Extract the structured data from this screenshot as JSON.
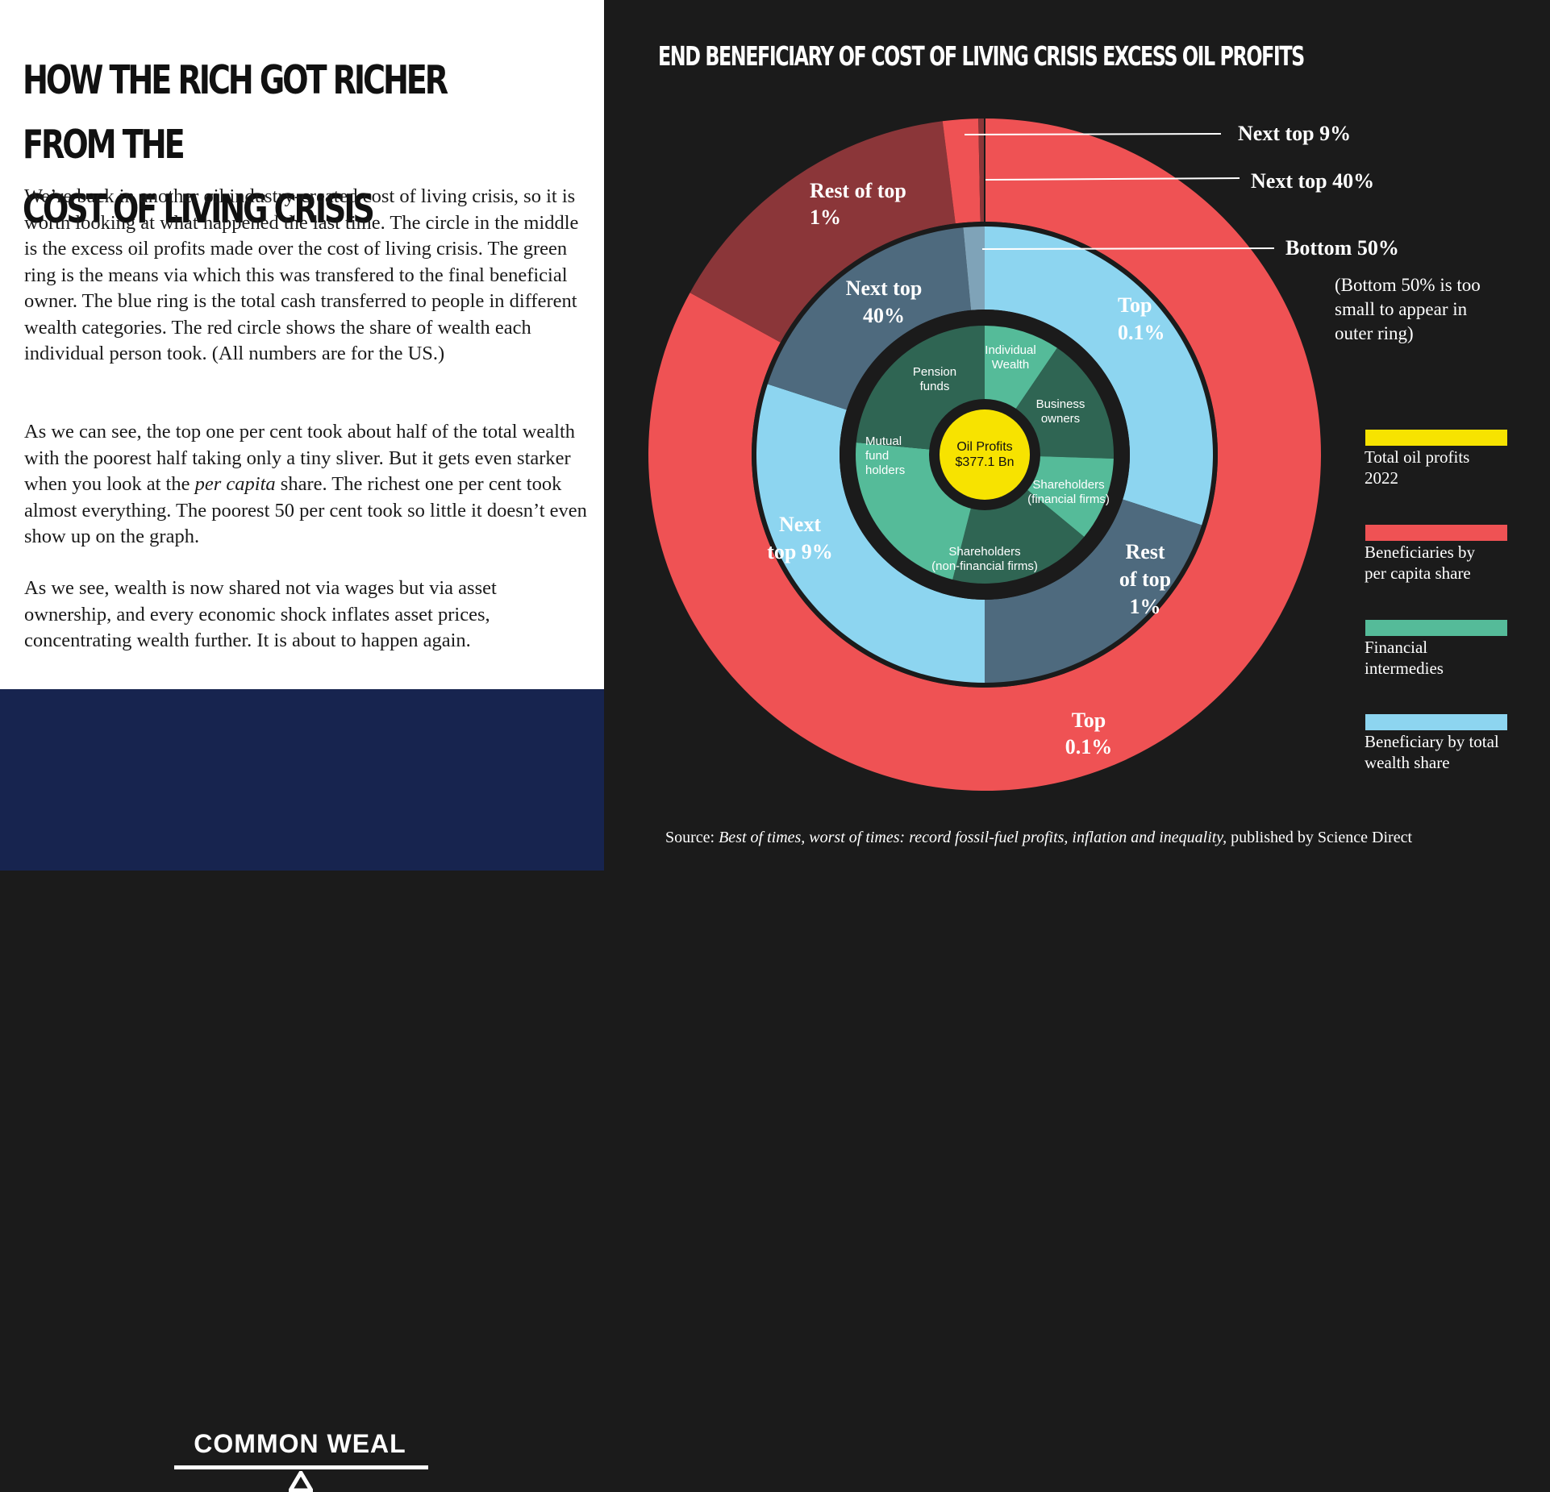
{
  "left_panel": {
    "headline": "HOW THE RICH GOT RICHER FROM THE\nCOST OF LIVING CRISIS",
    "paragraphs": [
      "We’re back in another oil industry-created cost of living crisis, so it is worth looking at what happened the last time. The circle in the middle is the excess oil profits made over the cost of living crisis. The green ring is the means via which this was transfered to the final beneficial owner. The blue ring is the total cash transferred to people in different wealth categories. The red circle shows the share of wealth each individual person took. (All numbers are for the US.)",
      "As we can see, the top one per cent took about half of the total wealth with the poorest half taking only a tiny sliver. But it gets even starker when you look at the per capita share. The richest one per cent took almost everything. The poorest 50 per cent took so little it doesn’t even show up on the graph.",
      "As we see, wealth is now shared not via wages but via asset ownership, and every economic shock inflates asset prices, concentrating wealth further. It is about to happen again."
    ]
  },
  "footer": {
    "brand": "COMMON WEAL"
  },
  "colors": {
    "yellow": "#f7e300",
    "red": "#ef5254",
    "dark_red": "#8b3639",
    "green": "#55bb99",
    "dark_green": "#2f6553",
    "light_blue": "#8dd5f0",
    "slate_blue": "#4e6a7e",
    "background": "#1b1b1b"
  },
  "chart_data": {
    "type": "nested-donut",
    "title": "END BENEFICIARY OF COST OF LIVING CRISIS EXCESS OIL PROFITS",
    "center": {
      "label": "Oil Profits",
      "value_label": "$377.1 Bn",
      "value_bn": 377.1
    },
    "green_ring": {
      "name": "Financial intermedies",
      "segments": [
        {
          "label": "Individual Wealth",
          "share": 0.095
        },
        {
          "label": "Business owners",
          "share": 0.16
        },
        {
          "label": "Shareholders (financial firms)",
          "share": 0.105
        },
        {
          "label": "Shareholders (non-financial firms)",
          "share": 0.18
        },
        {
          "label": "Mutual fund holders",
          "share": 0.225
        },
        {
          "label": "Pension funds",
          "share": 0.235
        }
      ]
    },
    "blue_ring": {
      "name": "Beneficiary by total wealth share",
      "segments": [
        {
          "label": "Top 0.1%",
          "share": 0.3
        },
        {
          "label": "Rest of top 1%",
          "share": 0.2
        },
        {
          "label": "Next top 9%",
          "share": 0.3
        },
        {
          "label": "Next top 40%",
          "share": 0.185
        },
        {
          "label": "Bottom 50%",
          "share": 0.015
        }
      ]
    },
    "red_ring": {
      "name": "Beneficiaries by per capita share",
      "segments": [
        {
          "label": "Top 0.1%",
          "share": 0.83
        },
        {
          "label": "Rest of top 1%",
          "share": 0.15
        },
        {
          "label": "Next top 9%",
          "share": 0.017
        },
        {
          "label": "Next top  40%",
          "share": 0.003
        }
      ]
    },
    "annotations": {
      "green": [
        "Individual\nWealth",
        "Business\nowners",
        "Shareholders\n(financial firms)",
        "Shareholders\n(non-financial firms)",
        "Mutual\nfund\nholders",
        "Pension\nfunds"
      ],
      "blue": [
        "Top\n0.1%",
        "Rest\nof top\n1%",
        "Next\ntop 9%",
        "Next top\n40%"
      ],
      "red": [
        "Top\n0.1%",
        "Rest of top\n1%"
      ],
      "callouts": [
        "Next top 9%",
        "Next top  40%",
        "Bottom 50%"
      ],
      "note": "(Bottom 50% is too\nsmall to appear in\nouter ring)"
    },
    "legend": [
      {
        "label": "Total oil profits\n2022",
        "color": "#f7e300"
      },
      {
        "label": "Beneficiaries by\nper capita share",
        "color": "#ef5254"
      },
      {
        "label": "Financial\nintermedies",
        "color": "#55bb99"
      },
      {
        "label": "Beneficiary by total\nwealth share",
        "color": "#8dd5f0"
      }
    ],
    "source": {
      "prefix": "Source: ",
      "title": "Best of times, worst of times: record fossil-fuel profits, inflation and inequality,",
      "suffix": " published by Science Direct"
    }
  }
}
